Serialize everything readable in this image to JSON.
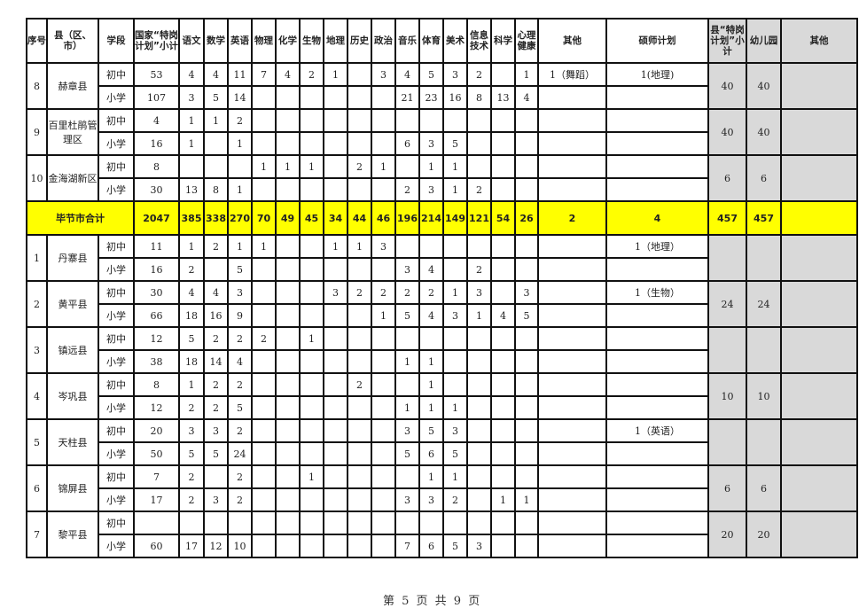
{
  "headers": [
    "序号",
    "县（区、市）",
    "学段",
    "国家“特岗计划”小计",
    "语文",
    "数学",
    "英语",
    "物理",
    "化学",
    "生物",
    "地理",
    "历史",
    "政治",
    "音乐",
    "体育",
    "美术",
    "信息技术",
    "科学",
    "心理健康",
    "其他",
    "硕师计划",
    "县“特岗 计划”小计",
    "幼儿园",
    "其他"
  ],
  "groups_before": [
    {
      "no": "8",
      "county": "赫章县",
      "rows": [
        {
          "stage": "初中",
          "values": [
            "53",
            "4",
            "4",
            "11",
            "7",
            "4",
            "2",
            "1",
            "",
            "3",
            "4",
            "5",
            "3",
            "2",
            "",
            "1",
            "1（舞蹈）",
            "1(地理)"
          ]
        },
        {
          "stage": "小学",
          "values": [
            "107",
            "3",
            "5",
            "14",
            "",
            "",
            "",
            "",
            "",
            "",
            "21",
            "23",
            "16",
            "8",
            "13",
            "4",
            "",
            ""
          ]
        }
      ],
      "county_subtotal": "40",
      "kindergarten": "40",
      "other": ""
    },
    {
      "no": "9",
      "county": "百里杜鹃管理区",
      "rows": [
        {
          "stage": "初中",
          "values": [
            "4",
            "1",
            "1",
            "2",
            "",
            "",
            "",
            "",
            "",
            "",
            "",
            "",
            "",
            "",
            "",
            "",
            "",
            ""
          ]
        },
        {
          "stage": "小学",
          "values": [
            "16",
            "1",
            "",
            "1",
            "",
            "",
            "",
            "",
            "",
            "",
            "6",
            "3",
            "5",
            "",
            "",
            "",
            "",
            ""
          ]
        }
      ],
      "county_subtotal": "40",
      "kindergarten": "40",
      "other": ""
    },
    {
      "no": "10",
      "county": "金海湖新区",
      "rows": [
        {
          "stage": "初中",
          "values": [
            "8",
            "",
            "",
            "",
            "1",
            "1",
            "1",
            "",
            "2",
            "1",
            "",
            "1",
            "1",
            "",
            "",
            "",
            "",
            ""
          ]
        },
        {
          "stage": "小学",
          "values": [
            "30",
            "13",
            "8",
            "1",
            "",
            "",
            "",
            "",
            "",
            "",
            "2",
            "3",
            "1",
            "2",
            "",
            "",
            "",
            ""
          ]
        }
      ],
      "county_subtotal": "6",
      "kindergarten": "6",
      "other": ""
    }
  ],
  "total": {
    "label": "毕节市合计",
    "values": [
      "2047",
      "385",
      "338",
      "270",
      "70",
      "49",
      "45",
      "34",
      "44",
      "46",
      "196",
      "214",
      "149",
      "121",
      "54",
      "26",
      "2",
      "4",
      "457",
      "457",
      ""
    ]
  },
  "groups_after": [
    {
      "no": "1",
      "county": "丹寨县",
      "rows": [
        {
          "stage": "初中",
          "values": [
            "11",
            "1",
            "2",
            "1",
            "1",
            "",
            "",
            "1",
            "1",
            "3",
            "",
            "",
            "",
            "",
            "",
            "",
            "",
            "1（地理）"
          ]
        },
        {
          "stage": "小学",
          "values": [
            "16",
            "2",
            "",
            "5",
            "",
            "",
            "",
            "",
            "",
            "",
            "3",
            "4",
            "",
            "2",
            "",
            "",
            "",
            ""
          ]
        }
      ],
      "county_subtotal": "",
      "kindergarten": "",
      "other": ""
    },
    {
      "no": "2",
      "county": "黄平县",
      "rows": [
        {
          "stage": "初中",
          "values": [
            "30",
            "4",
            "4",
            "3",
            "",
            "",
            "",
            "3",
            "2",
            "2",
            "2",
            "2",
            "1",
            "3",
            "",
            "3",
            "",
            "1（生物）"
          ]
        },
        {
          "stage": "小学",
          "values": [
            "66",
            "18",
            "16",
            "9",
            "",
            "",
            "",
            "",
            "",
            "1",
            "5",
            "4",
            "3",
            "1",
            "4",
            "5",
            "",
            ""
          ]
        }
      ],
      "county_subtotal": "24",
      "kindergarten": "24",
      "other": ""
    },
    {
      "no": "3",
      "county": "镇远县",
      "rows": [
        {
          "stage": "初中",
          "values": [
            "12",
            "5",
            "2",
            "2",
            "2",
            "",
            "1",
            "",
            "",
            "",
            "",
            "",
            "",
            "",
            "",
            "",
            "",
            ""
          ]
        },
        {
          "stage": "小学",
          "values": [
            "38",
            "18",
            "14",
            "4",
            "",
            "",
            "",
            "",
            "",
            "",
            "1",
            "1",
            "",
            "",
            "",
            "",
            "",
            ""
          ]
        }
      ],
      "county_subtotal": "",
      "kindergarten": "",
      "other": ""
    },
    {
      "no": "4",
      "county": "岑巩县",
      "rows": [
        {
          "stage": "初中",
          "values": [
            "8",
            "1",
            "2",
            "2",
            "",
            "",
            "",
            "",
            "2",
            "",
            "",
            "1",
            "",
            "",
            "",
            "",
            "",
            ""
          ]
        },
        {
          "stage": "小学",
          "values": [
            "12",
            "2",
            "2",
            "5",
            "",
            "",
            "",
            "",
            "",
            "",
            "1",
            "1",
            "1",
            "",
            "",
            "",
            "",
            ""
          ]
        }
      ],
      "county_subtotal": "10",
      "kindergarten": "10",
      "other": ""
    },
    {
      "no": "5",
      "county": "天柱县",
      "rows": [
        {
          "stage": "初中",
          "values": [
            "20",
            "3",
            "3",
            "2",
            "",
            "",
            "",
            "",
            "",
            "",
            "3",
            "5",
            "3",
            "",
            "",
            "",
            "",
            "1（英语）"
          ]
        },
        {
          "stage": "小学",
          "values": [
            "50",
            "5",
            "5",
            "24",
            "",
            "",
            "",
            "",
            "",
            "",
            "5",
            "6",
            "5",
            "",
            "",
            "",
            "",
            ""
          ]
        }
      ],
      "county_subtotal": "",
      "kindergarten": "",
      "other": ""
    },
    {
      "no": "6",
      "county": "锦屏县",
      "rows": [
        {
          "stage": "初中",
          "values": [
            "7",
            "2",
            "",
            "2",
            "",
            "",
            "1",
            "",
            "",
            "",
            "",
            "1",
            "1",
            "",
            "",
            "",
            "",
            ""
          ]
        },
        {
          "stage": "小学",
          "values": [
            "17",
            "2",
            "3",
            "2",
            "",
            "",
            "",
            "",
            "",
            "",
            "3",
            "3",
            "2",
            "",
            "1",
            "1",
            "",
            ""
          ]
        }
      ],
      "county_subtotal": "6",
      "kindergarten": "6",
      "other": ""
    },
    {
      "no": "7",
      "county": "黎平县",
      "rows": [
        {
          "stage": "初中",
          "values": [
            "",
            "",
            "",
            "",
            "",
            "",
            "",
            "",
            "",
            "",
            "",
            "",
            "",
            "",
            "",
            "",
            "",
            ""
          ]
        },
        {
          "stage": "小学",
          "values": [
            "60",
            "17",
            "12",
            "10",
            "",
            "",
            "",
            "",
            "",
            "",
            "7",
            "6",
            "5",
            "3",
            "",
            "",
            "",
            ""
          ]
        }
      ],
      "county_subtotal": "20",
      "kindergarten": "20",
      "other": ""
    }
  ],
  "footer": "第 5 页  共 9 页",
  "colors": {
    "total_row": "#ffff00",
    "county_columns": "#d9d9d9"
  }
}
